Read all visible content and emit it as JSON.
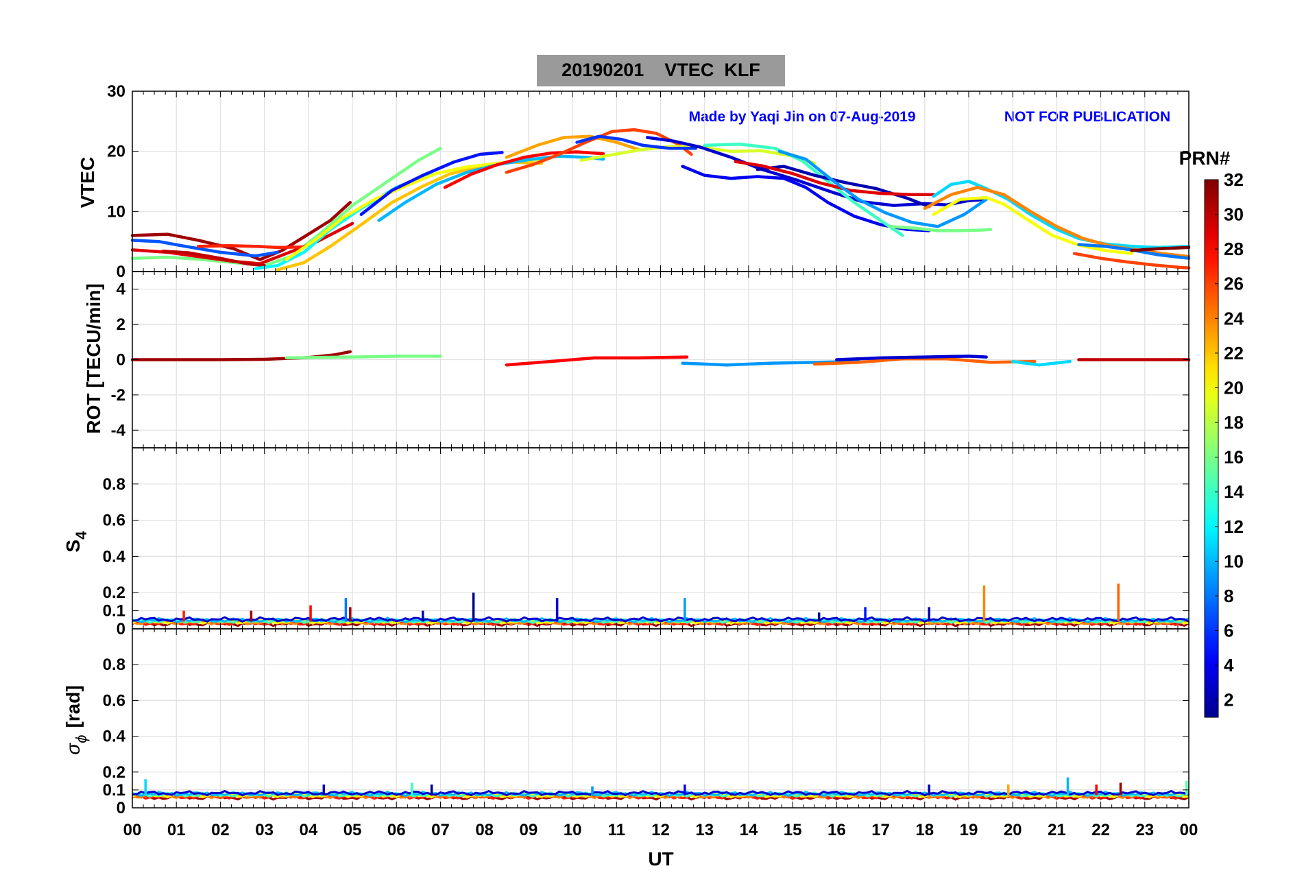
{
  "title": "20190201    VTEC  KLF",
  "credit": "Made by Yaqi Jin on 07-Aug-2019",
  "notice": "NOT FOR PUBLICATION",
  "colorbar": {
    "label": "PRN#",
    "ticks": [
      "2",
      "4",
      "6",
      "8",
      "10",
      "12",
      "14",
      "16",
      "18",
      "20",
      "22",
      "24",
      "26",
      "28",
      "30",
      "32"
    ],
    "range": [
      1,
      32
    ],
    "colormap": "jet",
    "colors": [
      "#00008f",
      "#0000ff",
      "#00ffff",
      "#ffff00",
      "#ff0000",
      "#800000"
    ]
  },
  "x_axis": {
    "label": "UT",
    "ticks": [
      "00",
      "01",
      "02",
      "03",
      "04",
      "05",
      "06",
      "07",
      "08",
      "09",
      "10",
      "11",
      "12",
      "13",
      "14",
      "15",
      "16",
      "17",
      "18",
      "19",
      "20",
      "21",
      "22",
      "23",
      "00"
    ],
    "range_hours": [
      0,
      24
    ]
  },
  "panels": [
    {
      "id": "vtec",
      "ylabel": "VTEC",
      "ylim": [
        0,
        30
      ],
      "yticks": [
        "0",
        "10",
        "20",
        "30"
      ]
    },
    {
      "id": "rot",
      "ylabel": "ROT [TECU/min]",
      "ylim": [
        -5,
        5
      ],
      "yticks": [
        "-4",
        "-2",
        "0",
        "2",
        "4"
      ]
    },
    {
      "id": "s4",
      "ylabel": "S",
      "ylabel_sub": "4",
      "ylim": [
        0,
        1
      ],
      "yticks": [
        "0",
        "0.1",
        "0.2",
        "0.4",
        "0.6",
        "0.8"
      ]
    },
    {
      "id": "sigma",
      "ylabel": "σ",
      "ylabel_sub": "ϕ",
      "ylabel_suffix": "[rad]",
      "ylim": [
        0,
        1
      ],
      "yticks": [
        "0",
        "0.1",
        "0.2",
        "0.4",
        "0.6",
        "0.8"
      ]
    }
  ],
  "chart_data": [
    {
      "type": "line",
      "title": "20190201    VTEC  KLF",
      "xlabel": "UT",
      "ylabel": "VTEC",
      "ylim": [
        0,
        30
      ],
      "xlim": [
        0,
        24
      ],
      "grid": true,
      "legend": "colorbar right (PRN#)",
      "series": [
        {
          "prn": 31,
          "x": [
            0.0,
            0.8,
            1.5,
            2.3,
            2.9,
            3.4,
            4.0,
            4.5,
            4.95
          ],
          "y": [
            6.0,
            6.2,
            5.2,
            3.8,
            2.0,
            3.5,
            6.2,
            8.5,
            11.5
          ]
        },
        {
          "prn": 7,
          "x": [
            0.0,
            0.6,
            1.2,
            2.0,
            2.8,
            3.3
          ],
          "y": [
            5.2,
            5.0,
            4.2,
            3.2,
            2.6,
            3.2
          ]
        },
        {
          "prn": 16,
          "x": [
            0.0,
            0.8,
            1.6,
            2.3,
            3.0,
            3.6,
            4.3,
            5.0,
            5.8,
            6.5,
            7.0
          ],
          "y": [
            2.2,
            2.4,
            2.0,
            1.5,
            1.0,
            2.5,
            6.5,
            11.0,
            15.0,
            18.5,
            20.5
          ]
        },
        {
          "prn": 29,
          "x": [
            0.0,
            0.8,
            1.5,
            2.3,
            2.9,
            3.5,
            4.2,
            5.0
          ],
          "y": [
            3.6,
            3.2,
            2.5,
            1.7,
            1.3,
            3.0,
            5.0,
            8.0
          ]
        },
        {
          "prn": 30,
          "x": [
            0.7,
            1.3,
            2.0,
            2.6,
            3.0
          ],
          "y": [
            3.4,
            3.1,
            2.2,
            1.3,
            1.0
          ]
        },
        {
          "prn": 27,
          "x": [
            1.5,
            2.2,
            2.8,
            3.3,
            3.9
          ],
          "y": [
            4.2,
            4.3,
            4.2,
            4.0,
            4.1
          ]
        },
        {
          "prn": 12,
          "x": [
            2.8,
            3.3,
            3.9,
            4.5,
            5.2,
            6.0,
            6.8
          ],
          "y": [
            0.5,
            1.0,
            3.2,
            7.0,
            10.5,
            14.0,
            16.5
          ]
        },
        {
          "prn": 22,
          "x": [
            3.3,
            3.9,
            4.5,
            5.2,
            5.9,
            6.6,
            7.2,
            7.9,
            8.6,
            9.3
          ],
          "y": [
            0.3,
            1.5,
            4.2,
            7.8,
            11.5,
            14.2,
            16.2,
            17.5,
            18.2,
            18.0
          ]
        },
        {
          "prn": 20,
          "x": [
            3.5,
            4.2,
            4.8,
            5.5,
            6.2,
            6.9,
            7.6,
            8.3,
            8.9,
            9.4
          ],
          "y": [
            2.0,
            5.5,
            9.0,
            12.0,
            14.2,
            16.3,
            17.4,
            18.0,
            18.5,
            18.7
          ]
        },
        {
          "prn": 10,
          "x": [
            5.6,
            6.2,
            6.9,
            7.6,
            8.3,
            9.0,
            9.7,
            10.3,
            10.7
          ],
          "y": [
            8.5,
            11.5,
            14.5,
            16.5,
            17.8,
            18.6,
            19.2,
            19.0,
            18.7
          ]
        },
        {
          "prn": 5,
          "x": [
            5.2,
            5.9,
            6.6,
            7.3,
            7.9,
            8.4
          ],
          "y": [
            9.5,
            13.5,
            16.0,
            18.2,
            19.5,
            19.8
          ]
        },
        {
          "prn": 28,
          "x": [
            7.1,
            7.7,
            8.3,
            8.9,
            9.5,
            10.1,
            10.7
          ],
          "y": [
            14.0,
            16.2,
            17.8,
            19.0,
            19.7,
            19.9,
            19.6
          ]
        },
        {
          "prn": 23,
          "x": [
            8.5,
            9.2,
            9.8,
            10.4,
            11.0,
            11.5
          ],
          "y": [
            19.0,
            21.0,
            22.3,
            22.5,
            21.5,
            20.3
          ]
        },
        {
          "prn": 26,
          "x": [
            8.5,
            9.1,
            9.7,
            10.3,
            10.9,
            11.4,
            11.9,
            12.4,
            12.7
          ],
          "y": [
            16.5,
            17.8,
            19.5,
            21.5,
            23.3,
            23.6,
            23.0,
            21.2,
            19.5
          ]
        },
        {
          "prn": 19,
          "x": [
            10.2,
            10.8,
            11.5,
            12.2,
            12.9,
            13.6,
            14.3,
            15.0,
            15.5
          ],
          "y": [
            18.5,
            19.3,
            20.2,
            20.8,
            20.7,
            20.0,
            20.1,
            19.2,
            18.0
          ]
        },
        {
          "prn": 6,
          "x": [
            10.1,
            10.6,
            11.1,
            11.6,
            12.2,
            12.8
          ],
          "y": [
            21.5,
            22.5,
            22.0,
            21.0,
            20.5,
            20.5
          ]
        },
        {
          "prn": 3,
          "x": [
            11.7,
            12.3,
            12.9,
            13.6,
            14.3,
            15.1,
            15.9,
            16.6,
            17.3,
            18.0,
            18.5,
            19.0,
            19.4
          ],
          "y": [
            22.3,
            21.7,
            20.7,
            19.0,
            17.0,
            15.2,
            13.2,
            11.6,
            11.0,
            11.3,
            11.1,
            11.8,
            12.0
          ]
        },
        {
          "prn": 4,
          "x": [
            12.5,
            13.0,
            13.6,
            14.2,
            14.8,
            15.3,
            15.8,
            16.4,
            17.0,
            17.6,
            18.1
          ],
          "y": [
            17.5,
            16.0,
            15.5,
            15.8,
            15.5,
            14.0,
            11.5,
            9.2,
            7.8,
            7.0,
            6.8
          ]
        },
        {
          "prn": 14,
          "x": [
            13.0,
            13.8,
            14.6,
            15.2,
            15.8,
            16.4,
            17.0,
            17.5
          ],
          "y": [
            21.0,
            21.2,
            20.5,
            18.5,
            15.0,
            11.5,
            8.5,
            6.0
          ]
        },
        {
          "prn": 2,
          "x": [
            14.2,
            14.8,
            15.5,
            16.2,
            16.9,
            17.6,
            18.1
          ],
          "y": [
            17.0,
            17.5,
            16.0,
            14.8,
            13.8,
            12.2,
            10.8
          ]
        },
        {
          "prn": 29,
          "x": [
            13.7,
            14.3,
            15.0,
            15.6,
            16.3,
            17.0,
            17.7,
            18.2
          ],
          "y": [
            18.3,
            17.6,
            16.3,
            14.8,
            13.5,
            13.0,
            12.8,
            12.8
          ]
        },
        {
          "prn": 9,
          "x": [
            14.7,
            15.3,
            15.9,
            16.5,
            17.1,
            17.7,
            18.3,
            18.9,
            19.4
          ],
          "y": [
            20.0,
            18.7,
            15.2,
            12.0,
            9.8,
            8.2,
            7.5,
            9.5,
            12.0
          ]
        },
        {
          "prn": 16,
          "x": [
            17.2,
            17.8,
            18.3,
            18.8,
            19.3,
            19.5
          ],
          "y": [
            7.5,
            7.2,
            6.8,
            6.8,
            6.9,
            7.0
          ]
        },
        {
          "prn": 11,
          "x": [
            18.2,
            18.6,
            19.0,
            19.4,
            19.9,
            20.4,
            21.0,
            21.5,
            22.1,
            22.7,
            23.3,
            24.0
          ],
          "y": [
            12.5,
            14.5,
            15.0,
            13.8,
            12.0,
            9.5,
            7.0,
            5.5,
            4.6,
            4.2,
            4.0,
            4.2
          ]
        },
        {
          "prn": 24,
          "x": [
            18.0,
            18.6,
            19.2,
            19.8,
            20.4,
            21.0,
            21.6,
            22.2,
            22.8,
            23.4,
            24.0
          ],
          "y": [
            10.5,
            12.8,
            14.0,
            12.8,
            10.0,
            7.5,
            5.5,
            4.3,
            3.6,
            3.0,
            2.5
          ]
        },
        {
          "prn": 20,
          "x": [
            18.2,
            18.8,
            19.4,
            19.8,
            20.3,
            20.9,
            21.5,
            22.1,
            22.7
          ],
          "y": [
            9.5,
            12.0,
            12.3,
            11.2,
            8.8,
            6.0,
            4.4,
            3.5,
            3.0
          ]
        },
        {
          "prn": 26,
          "x": [
            21.4,
            22.0,
            22.6,
            23.2,
            23.8,
            24.0
          ],
          "y": [
            3.0,
            2.2,
            1.6,
            1.1,
            0.7,
            0.6
          ]
        },
        {
          "prn": 8,
          "x": [
            21.5,
            22.1,
            22.7,
            23.3,
            24.0
          ],
          "y": [
            4.5,
            4.2,
            3.6,
            2.8,
            2.2
          ]
        },
        {
          "prn": 32,
          "x": [
            22.7,
            23.3,
            24.0
          ],
          "y": [
            3.5,
            3.8,
            4.0
          ]
        }
      ]
    },
    {
      "type": "line",
      "ylabel": "ROT [TECU/min]",
      "ylim": [
        -5,
        5
      ],
      "xlim": [
        0,
        24
      ],
      "grid": true,
      "series": [
        {
          "prn": 31,
          "x": [
            0.0,
            2.0,
            3.0,
            4.0,
            4.6,
            4.95
          ],
          "y": [
            0.0,
            0.0,
            0.02,
            0.12,
            0.28,
            0.45
          ]
        },
        {
          "prn": 28,
          "x": [
            8.5,
            9.5,
            10.5,
            11.5,
            12.6
          ],
          "y": [
            -0.3,
            -0.1,
            0.1,
            0.1,
            0.15
          ]
        },
        {
          "prn": 16,
          "x": [
            3.5,
            5.0,
            6.0,
            7.0
          ],
          "y": [
            0.1,
            0.15,
            0.2,
            0.2
          ]
        },
        {
          "prn": 9,
          "x": [
            12.5,
            13.5,
            14.5,
            15.5,
            16.5
          ],
          "y": [
            -0.2,
            -0.3,
            -0.2,
            -0.15,
            -0.1
          ]
        },
        {
          "prn": 25,
          "x": [
            15.5,
            16.5,
            17.5,
            18.5,
            19.5,
            20.5
          ],
          "y": [
            -0.25,
            -0.15,
            0.05,
            0.05,
            -0.15,
            -0.1
          ]
        },
        {
          "prn": 3,
          "x": [
            16.0,
            17.0,
            18.0,
            19.0,
            19.4
          ],
          "y": [
            0.0,
            0.1,
            0.15,
            0.2,
            0.15
          ]
        },
        {
          "prn": 11,
          "x": [
            20.0,
            20.6,
            21.3
          ],
          "y": [
            -0.1,
            -0.3,
            -0.1
          ]
        },
        {
          "prn": 30,
          "x": [
            21.5,
            22.5,
            23.5,
            24.0
          ],
          "y": [
            0.0,
            0.0,
            0.0,
            0.0
          ]
        }
      ]
    },
    {
      "type": "line",
      "ylabel": "S4",
      "ylim": [
        0,
        1
      ],
      "xlim": [
        0,
        24
      ],
      "grid": true,
      "baseline": 0.04,
      "spikes": [
        {
          "prn": 27,
          "x": 1.17,
          "y": 0.1
        },
        {
          "prn": 31,
          "x": 2.7,
          "y": 0.1
        },
        {
          "prn": 28,
          "x": 4.05,
          "y": 0.13
        },
        {
          "prn": 8,
          "x": 4.85,
          "y": 0.17
        },
        {
          "prn": 31,
          "x": 4.95,
          "y": 0.12
        },
        {
          "prn": 2,
          "x": 6.6,
          "y": 0.1
        },
        {
          "prn": 1,
          "x": 7.75,
          "y": 0.2
        },
        {
          "prn": 3,
          "x": 9.65,
          "y": 0.17
        },
        {
          "prn": 9,
          "x": 12.55,
          "y": 0.17
        },
        {
          "prn": 1,
          "x": 15.6,
          "y": 0.09
        },
        {
          "prn": 5,
          "x": 16.65,
          "y": 0.12
        },
        {
          "prn": 2,
          "x": 18.1,
          "y": 0.12
        },
        {
          "prn": 24,
          "x": 19.35,
          "y": 0.24
        },
        {
          "prn": 25,
          "x": 22.4,
          "y": 0.25
        }
      ]
    },
    {
      "type": "line",
      "ylabel": "σφ [rad]",
      "ylim": [
        0,
        1
      ],
      "xlim": [
        0,
        24
      ],
      "grid": true,
      "baseline": 0.07,
      "spikes": [
        {
          "prn": 11,
          "x": 0.3,
          "y": 0.16
        },
        {
          "prn": 2,
          "x": 4.35,
          "y": 0.13
        },
        {
          "prn": 14,
          "x": 6.35,
          "y": 0.14
        },
        {
          "prn": 1,
          "x": 6.8,
          "y": 0.13
        },
        {
          "prn": 9,
          "x": 10.45,
          "y": 0.12
        },
        {
          "prn": 4,
          "x": 12.55,
          "y": 0.13
        },
        {
          "prn": 2,
          "x": 18.1,
          "y": 0.13
        },
        {
          "prn": 23,
          "x": 19.9,
          "y": 0.13
        },
        {
          "prn": 10,
          "x": 21.25,
          "y": 0.17
        },
        {
          "prn": 28,
          "x": 21.9,
          "y": 0.13
        },
        {
          "prn": 31,
          "x": 22.45,
          "y": 0.14
        },
        {
          "prn": 15,
          "x": 23.95,
          "y": 0.15
        }
      ]
    }
  ]
}
